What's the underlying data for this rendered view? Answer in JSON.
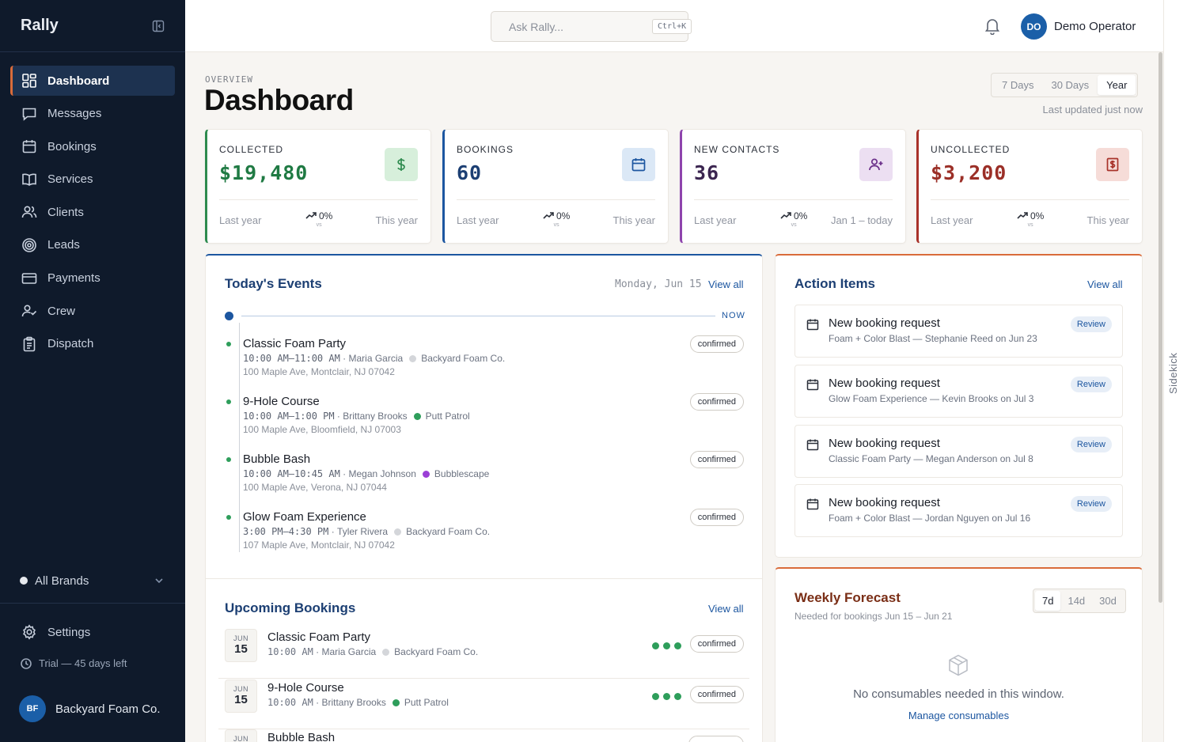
{
  "app": {
    "name": "Rally"
  },
  "sidebar": {
    "items": [
      {
        "label": "Dashboard",
        "icon": "grid-icon"
      },
      {
        "label": "Messages",
        "icon": "message-icon"
      },
      {
        "label": "Bookings",
        "icon": "calendar-icon"
      },
      {
        "label": "Services",
        "icon": "book-icon"
      },
      {
        "label": "Clients",
        "icon": "users-icon"
      },
      {
        "label": "Leads",
        "icon": "target-icon"
      },
      {
        "label": "Payments",
        "icon": "card-icon"
      },
      {
        "label": "Crew",
        "icon": "user-check-icon"
      },
      {
        "label": "Dispatch",
        "icon": "clipboard-icon"
      }
    ],
    "brand_filter": "All Brands",
    "settings_label": "Settings",
    "trial_text": "Trial — 45 days left",
    "account": {
      "initials": "BF",
      "name": "Backyard Foam Co."
    }
  },
  "topbar": {
    "search_placeholder": "Ask Rally...",
    "search_shortcut": "Ctrl+K",
    "user": {
      "initials": "DO",
      "name": "Demo Operator"
    }
  },
  "rail": {
    "label": "Sidekick"
  },
  "header": {
    "eyebrow": "OVERVIEW",
    "title": "Dashboard",
    "ranges": [
      "7 Days",
      "30 Days",
      "Year"
    ],
    "selected_range": "Year",
    "updated": "Last updated just now"
  },
  "stats": [
    {
      "label": "COLLECTED",
      "value": "$19,480",
      "left": "Last year",
      "trend": "0%",
      "vs": "vs",
      "right": "This year",
      "accent": "#2e8b4f",
      "value_color": "#1f7a43",
      "icon_bg": "#d7efdb",
      "icon": "dollar-icon"
    },
    {
      "label": "BOOKINGS",
      "value": "60",
      "left": "Last year",
      "trend": "0%",
      "vs": "vs",
      "right": "This year",
      "accent": "#1c56a0",
      "value_color": "#1c3f73",
      "icon_bg": "#dbe8f6",
      "icon": "calendar-icon"
    },
    {
      "label": "NEW CONTACTS",
      "value": "36",
      "left": "Last year",
      "trend": "0%",
      "vs": "vs",
      "right": "Jan 1 – today",
      "accent": "#8e44ad",
      "value_color": "#3b2550",
      "icon_bg": "#ecdff2",
      "icon": "user-plus-icon"
    },
    {
      "label": "UNCOLLECTED",
      "value": "$3,200",
      "left": "Last year",
      "trend": "0%",
      "vs": "vs",
      "right": "This year",
      "accent": "#a8322a",
      "value_color": "#9b2f27",
      "icon_bg": "#f6dcd8",
      "icon": "receipt-icon"
    }
  ],
  "events_panel": {
    "title": "Today's Events",
    "date": "Monday, Jun 15",
    "view_all": "View all",
    "now_label": "NOW",
    "events": [
      {
        "title": "Classic Foam Party",
        "time": "10:00 AM–11:00 AM",
        "person": "Maria Garcia",
        "brand": "Backyard Foam Co.",
        "brand_color": "#d4d6da",
        "address": "100 Maple Ave, Montclair, NJ 07042",
        "status": "confirmed"
      },
      {
        "title": "9-Hole Course",
        "time": "10:00 AM–1:00 PM",
        "person": "Brittany Brooks",
        "brand": "Putt Patrol",
        "brand_color": "#2e9e5b",
        "address": "100 Maple Ave, Bloomfield, NJ 07003",
        "status": "confirmed"
      },
      {
        "title": "Bubble Bash",
        "time": "10:00 AM–10:45 AM",
        "person": "Megan Johnson",
        "brand": "Bubblescape",
        "brand_color": "#9b3fd6",
        "address": "100 Maple Ave, Verona, NJ 07044",
        "status": "confirmed"
      },
      {
        "title": "Glow Foam Experience",
        "time": "3:00 PM–4:30 PM",
        "person": "Tyler Rivera",
        "brand": "Backyard Foam Co.",
        "brand_color": "#d4d6da",
        "address": "107 Maple Ave, Montclair, NJ 07042",
        "status": "confirmed"
      }
    ]
  },
  "upcoming_panel": {
    "title": "Upcoming Bookings",
    "view_all": "View all",
    "bookings": [
      {
        "month": "JUN",
        "day": "15",
        "title": "Classic Foam Party",
        "time": "10:00 AM",
        "person": "Maria Garcia",
        "brand": "Backyard Foam Co.",
        "brand_color": "#d4d6da",
        "status": "confirmed"
      },
      {
        "month": "JUN",
        "day": "15",
        "title": "9-Hole Course",
        "time": "10:00 AM",
        "person": "Brittany Brooks",
        "brand": "Putt Patrol",
        "brand_color": "#2e9e5b",
        "status": "confirmed"
      },
      {
        "month": "JUN",
        "day": "",
        "title": "Bubble Bash",
        "time": "",
        "person": "",
        "brand": "",
        "brand_color": "#9b3fd6",
        "status": ""
      }
    ]
  },
  "actions_panel": {
    "title": "Action Items",
    "view_all": "View all",
    "items": [
      {
        "title": "New booking request",
        "subtitle": "Foam + Color Blast — Stephanie Reed on Jun 23",
        "action": "Review"
      },
      {
        "title": "New booking request",
        "subtitle": "Glow Foam Experience — Kevin Brooks on Jul 3",
        "action": "Review"
      },
      {
        "title": "New booking request",
        "subtitle": "Classic Foam Party — Megan Anderson on Jul 8",
        "action": "Review"
      },
      {
        "title": "New booking request",
        "subtitle": "Foam + Color Blast — Jordan Nguyen on Jul 16",
        "action": "Review"
      }
    ]
  },
  "forecast_panel": {
    "title": "Weekly Forecast",
    "subtitle": "Needed for bookings Jun 15 – Jun 21",
    "ranges": [
      "7d",
      "14d",
      "30d"
    ],
    "selected_range": "7d",
    "empty_text": "No consumables needed in this window.",
    "manage_link": "Manage consumables"
  },
  "colors": {
    "sidebar_bg": "#0f1a2b",
    "accent_orange": "#d96b3a",
    "link_blue": "#1c56a0"
  }
}
